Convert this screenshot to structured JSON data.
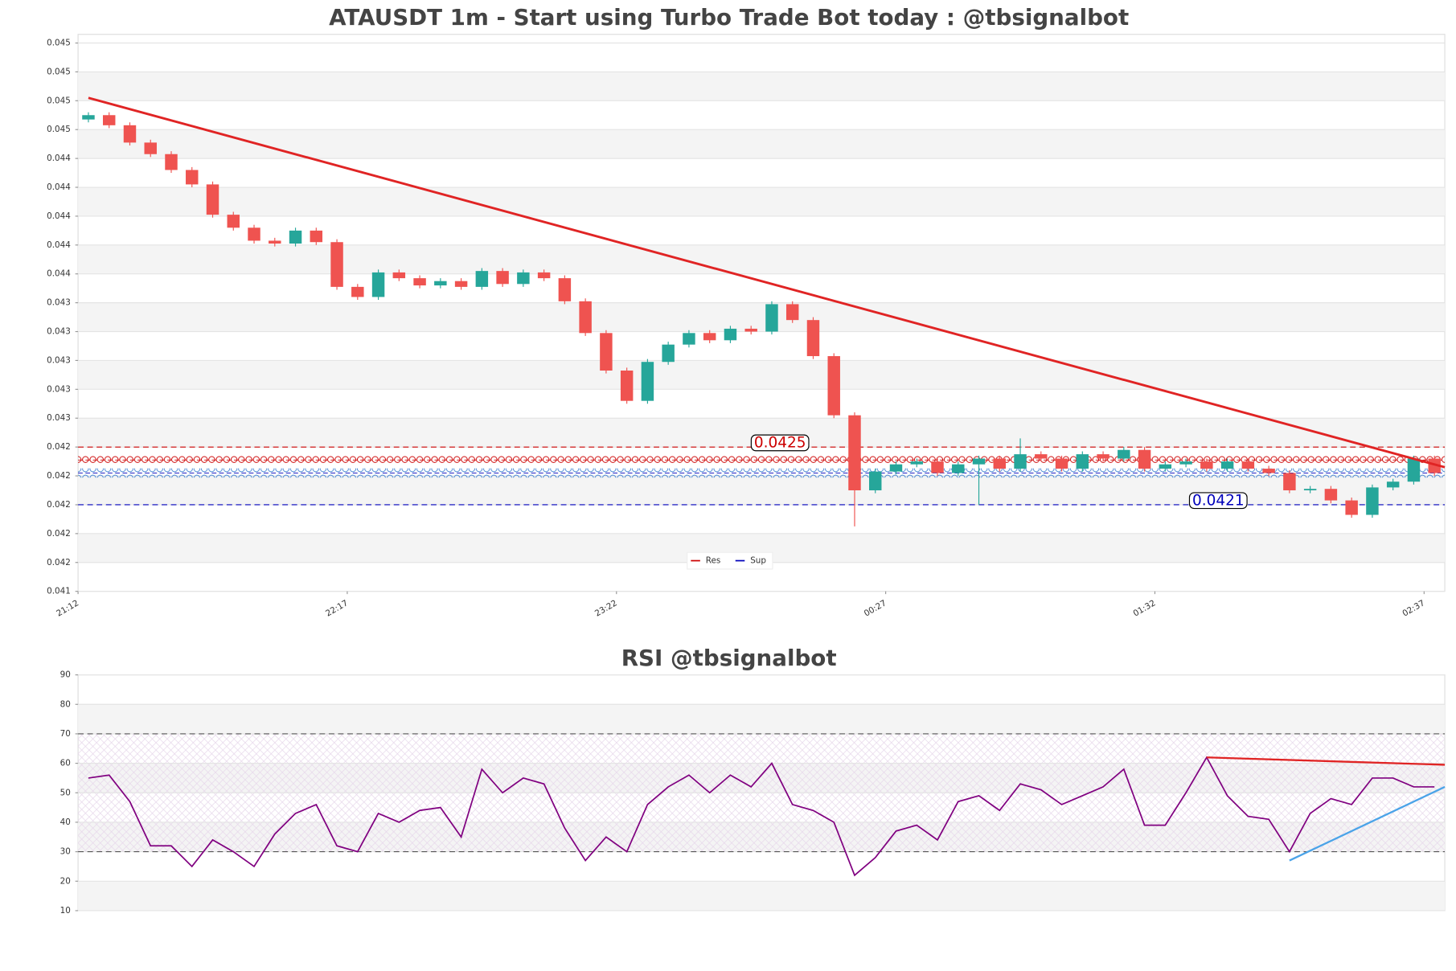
{
  "chart_data": [
    {
      "type": "candlestick",
      "title": "ATAUSDT 1m - Start using Turbo Trade Bot today : @tbsignalbot",
      "categories": [
        "21:12",
        null,
        null,
        null,
        null,
        null,
        null,
        null,
        null,
        null,
        null,
        null,
        null,
        "22:17",
        null,
        null,
        null,
        null,
        null,
        null,
        null,
        null,
        null,
        null,
        null,
        null,
        "23:22",
        null,
        null,
        null,
        null,
        null,
        null,
        null,
        null,
        null,
        null,
        null,
        null,
        "00:27",
        null,
        null,
        null,
        null,
        null,
        null,
        null,
        null,
        null,
        null,
        null,
        null,
        "01:32",
        null,
        null,
        null,
        null,
        null,
        null,
        null,
        null,
        null,
        null,
        null,
        null,
        "02:37"
      ],
      "open": [
        0.04477,
        0.0448,
        0.04473,
        0.04461,
        0.04453,
        0.04442,
        0.04432,
        0.04411,
        0.04402,
        0.04393,
        0.04391,
        0.044,
        0.04392,
        0.04361,
        0.04354,
        0.04371,
        0.04367,
        0.04362,
        0.04365,
        0.04361,
        0.04372,
        0.04363,
        0.04371,
        0.04367,
        0.04351,
        0.04329,
        0.04303,
        0.04282,
        0.04309,
        0.04321,
        0.04329,
        0.04324,
        0.04332,
        0.0433,
        0.04349,
        0.04338,
        0.04313,
        0.04272,
        0.0422,
        0.04233,
        0.04238,
        0.0424,
        0.04232,
        0.04238,
        0.04242,
        0.04235,
        0.04245,
        0.04242,
        0.04235,
        0.04245,
        0.04242,
        0.04248,
        0.04235,
        0.04238,
        0.0424,
        0.04235,
        0.0424,
        0.04235,
        0.04232,
        0.0422,
        0.04221,
        0.04213,
        0.04203,
        0.04222,
        0.04226,
        0.04242
      ],
      "high": [
        0.04482,
        0.04482,
        0.04475,
        0.04463,
        0.04455,
        0.04444,
        0.04434,
        0.04413,
        0.04404,
        0.04395,
        0.04402,
        0.04402,
        0.04394,
        0.04363,
        0.04373,
        0.04373,
        0.04369,
        0.04367,
        0.04367,
        0.04374,
        0.04374,
        0.04373,
        0.04373,
        0.04369,
        0.04353,
        0.04331,
        0.04305,
        0.04311,
        0.04323,
        0.04331,
        0.04331,
        0.04334,
        0.04334,
        0.04351,
        0.04351,
        0.0434,
        0.04315,
        0.04274,
        0.04235,
        0.0424,
        0.04242,
        0.04242,
        0.0424,
        0.04244,
        0.04244,
        0.04256,
        0.04247,
        0.04244,
        0.04247,
        0.04247,
        0.0425,
        0.0425,
        0.0424,
        0.04242,
        0.04242,
        0.04242,
        0.04242,
        0.04237,
        0.04234,
        0.04223,
        0.04223,
        0.04215,
        0.04224,
        0.04228,
        0.04244,
        0.04244
      ],
      "low": [
        0.04475,
        0.04471,
        0.04459,
        0.04451,
        0.0444,
        0.0443,
        0.04409,
        0.044,
        0.04391,
        0.04389,
        0.04389,
        0.0439,
        0.04359,
        0.04352,
        0.04352,
        0.04365,
        0.0436,
        0.0436,
        0.04359,
        0.04359,
        0.04361,
        0.04361,
        0.04365,
        0.04349,
        0.04327,
        0.04301,
        0.0428,
        0.0428,
        0.04307,
        0.04319,
        0.04322,
        0.04322,
        0.04328,
        0.04328,
        0.04336,
        0.04311,
        0.0427,
        0.04195,
        0.04218,
        0.04231,
        0.04236,
        0.0423,
        0.0423,
        0.0421,
        0.04233,
        0.04233,
        0.0424,
        0.04233,
        0.04233,
        0.0424,
        0.0424,
        0.04233,
        0.04233,
        0.04236,
        0.04233,
        0.04233,
        0.04233,
        0.0423,
        0.04218,
        0.04218,
        0.04211,
        0.04201,
        0.04201,
        0.0422,
        0.04224,
        0.0423
      ],
      "close": [
        0.0448,
        0.04473,
        0.04461,
        0.04453,
        0.04442,
        0.04432,
        0.04411,
        0.04402,
        0.04393,
        0.04391,
        0.044,
        0.04392,
        0.04361,
        0.04354,
        0.04371,
        0.04367,
        0.04362,
        0.04365,
        0.04361,
        0.04372,
        0.04363,
        0.04371,
        0.04367,
        0.04351,
        0.04329,
        0.04303,
        0.04282,
        0.04309,
        0.04321,
        0.04329,
        0.04324,
        0.04332,
        0.0433,
        0.04349,
        0.04338,
        0.04313,
        0.04272,
        0.0422,
        0.04233,
        0.04238,
        0.0424,
        0.04232,
        0.04238,
        0.04242,
        0.04235,
        0.04245,
        0.04242,
        0.04235,
        0.04245,
        0.04242,
        0.04248,
        0.04235,
        0.04238,
        0.0424,
        0.04235,
        0.0424,
        0.04235,
        0.04232,
        0.0422,
        0.04221,
        0.04213,
        0.04203,
        0.04222,
        0.04226,
        0.04242,
        0.04232
      ],
      "up_color": "#26a69a",
      "down_color": "#ef5350",
      "ylim": [
        0.0415,
        0.04536
      ],
      "yticks": [
        {
          "value": 0.0415,
          "label": "0.041"
        },
        {
          "value": 0.0417,
          "label": "0.042"
        },
        {
          "value": 0.0419,
          "label": "0.042"
        },
        {
          "value": 0.0421,
          "label": "0.042"
        },
        {
          "value": 0.0423,
          "label": "0.042"
        },
        {
          "value": 0.0425,
          "label": "0.042"
        },
        {
          "value": 0.0427,
          "label": "0.043"
        },
        {
          "value": 0.0429,
          "label": "0.043"
        },
        {
          "value": 0.0431,
          "label": "0.043"
        },
        {
          "value": 0.0433,
          "label": "0.043"
        },
        {
          "value": 0.0435,
          "label": "0.043"
        },
        {
          "value": 0.0437,
          "label": "0.044"
        },
        {
          "value": 0.0439,
          "label": "0.044"
        },
        {
          "value": 0.0441,
          "label": "0.044"
        },
        {
          "value": 0.0443,
          "label": "0.044"
        },
        {
          "value": 0.0445,
          "label": "0.044"
        },
        {
          "value": 0.0447,
          "label": "0.045"
        },
        {
          "value": 0.0449,
          "label": "0.045"
        },
        {
          "value": 0.0451,
          "label": "0.045"
        },
        {
          "value": 0.0453,
          "label": "0.045"
        }
      ],
      "grid": true,
      "trendline": {
        "color": "#e02424",
        "values": [
          0.04492,
          0.04236
        ]
      },
      "levels": [
        {
          "name": "Res",
          "color": "#cc0000",
          "values": [
            0.0425,
            0.04241
          ]
        },
        {
          "name": "Sup",
          "color": "#0000bb",
          "values": [
            0.0421,
            0.04232
          ]
        }
      ],
      "annotations": [
        {
          "text": "0.0425",
          "value": 0.0425,
          "color": "#cc0000"
        },
        {
          "text": "0.0421",
          "value": 0.0421,
          "color": "#0000bb"
        }
      ],
      "legend": "lower center"
    },
    {
      "type": "line",
      "title": "RSI @tbsignalbot",
      "categories": [
        null,
        null,
        null,
        null,
        null,
        null,
        null,
        null,
        null,
        null,
        null,
        null,
        null,
        null,
        null,
        null,
        null,
        null,
        null,
        null,
        null,
        null,
        null,
        null,
        null,
        null,
        null,
        null,
        null,
        null,
        null,
        null,
        null,
        null,
        null,
        null,
        null,
        null,
        null,
        null,
        null,
        null,
        null,
        null,
        null,
        null,
        null,
        null,
        null,
        null,
        null,
        null,
        null,
        null,
        null,
        null,
        null,
        null,
        null,
        null,
        null,
        null,
        null,
        null,
        null,
        null
      ],
      "values": [
        55,
        56,
        47,
        32,
        32,
        25,
        34,
        30,
        25,
        36,
        43,
        46,
        32,
        30,
        43,
        40,
        44,
        45,
        35,
        58,
        50,
        55,
        53,
        38,
        27,
        35,
        30,
        46,
        52,
        56,
        50,
        56,
        52,
        60,
        46,
        44,
        40,
        22,
        28,
        37,
        39,
        34,
        47,
        49,
        44,
        53,
        51,
        46,
        49,
        52,
        58,
        39,
        39,
        50,
        62,
        49,
        42,
        41,
        30,
        43,
        48,
        46,
        55,
        55,
        52,
        52
      ],
      "color": "#800080",
      "ylim": [
        10,
        90
      ],
      "yticks": [
        10,
        20,
        30,
        40,
        50,
        60,
        70,
        80,
        90
      ],
      "grid": true,
      "reference_lines": [
        30,
        70
      ],
      "trend_lines": [
        {
          "color": "#e02424",
          "values": [
            62,
            59.5
          ]
        },
        {
          "color": "#4aa3e8",
          "values": [
            27,
            52
          ]
        }
      ]
    }
  ]
}
